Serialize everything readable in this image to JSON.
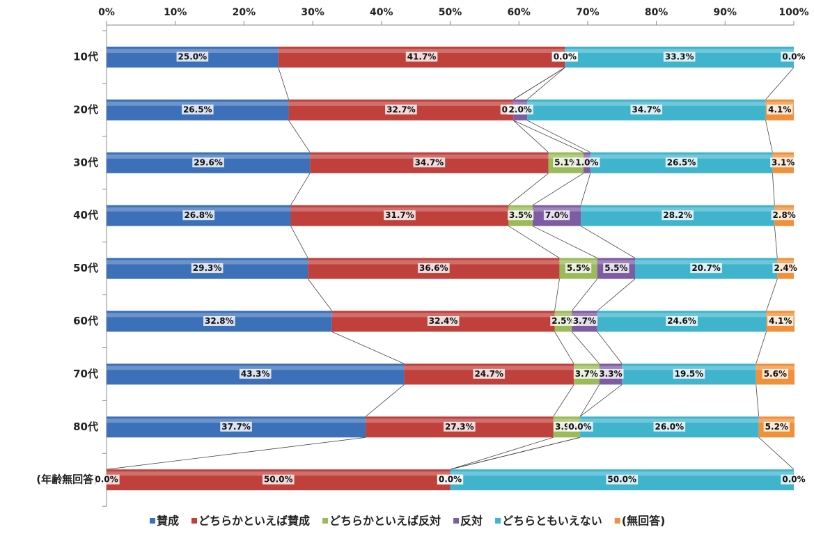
{
  "chart_data": {
    "type": "stacked-bar-horizontal",
    "categories": [
      "10代",
      "20代",
      "30代",
      "40代",
      "50代",
      "60代",
      "70代",
      "80代",
      "(年齢無回答)"
    ],
    "series": [
      {
        "name": "賛成",
        "color": "#3c70b8",
        "values": [
          25.0,
          26.5,
          29.6,
          26.8,
          29.3,
          32.8,
          43.3,
          37.7,
          0.0
        ],
        "value_labels": [
          "25.0%",
          "26.5%",
          "29.6%",
          "26.8%",
          "29.3%",
          "32.8%",
          "43.3%",
          "37.7%",
          "0.0%"
        ]
      },
      {
        "name": "どちらかといえば賛成",
        "color": "#c0403c",
        "values": [
          41.7,
          32.7,
          34.7,
          31.7,
          36.6,
          32.4,
          24.7,
          27.3,
          50.0
        ],
        "value_labels": [
          "41.7%",
          "32.7%",
          "34.7%",
          "31.7%",
          "36.6%",
          "32.4%",
          "24.7%",
          "27.3%",
          "50.0%"
        ]
      },
      {
        "name": "どちらかといえば反対",
        "color": "#9bbb59",
        "values": [
          0.0,
          0.0,
          5.1,
          3.5,
          5.5,
          2.5,
          3.7,
          3.9,
          0.0
        ],
        "value_labels": [
          "0.0%",
          "0.0%",
          "5.1%",
          "3.5%",
          "5.5%",
          "2.5%",
          "3.7%",
          "3.9%",
          "0.0%"
        ]
      },
      {
        "name": "反対",
        "color": "#7e5ca3",
        "values": [
          0.0,
          2.0,
          1.0,
          7.0,
          5.5,
          3.7,
          3.3,
          0.0,
          0.0
        ],
        "value_labels": [
          "0.0%",
          "2.0%",
          "1.0%",
          "7.0%",
          "5.5%",
          "3.7%",
          "3.3%",
          "0.0%",
          "0.0%"
        ]
      },
      {
        "name": "どちらともいえない",
        "color": "#3fb4cc",
        "values": [
          33.3,
          34.7,
          26.5,
          28.2,
          20.7,
          24.6,
          19.5,
          26.0,
          50.0
        ],
        "value_labels": [
          "33.3%",
          "34.7%",
          "26.5%",
          "28.2%",
          "20.7%",
          "24.6%",
          "19.5%",
          "26.0%",
          "50.0%"
        ]
      },
      {
        "name": "(無回答)",
        "color": "#f0913a",
        "values": [
          0.0,
          4.1,
          3.1,
          2.8,
          2.4,
          4.1,
          5.6,
          5.2,
          0.0
        ],
        "value_labels": [
          "0.0%",
          "4.1%",
          "3.1%",
          "2.8%",
          "2.4%",
          "4.1%",
          "5.6%",
          "5.2%",
          "0.0%"
        ]
      }
    ],
    "xlim": [
      0,
      100
    ],
    "xticks": [
      {
        "value": 0,
        "label": "0%"
      },
      {
        "value": 10,
        "label": "10%"
      },
      {
        "value": 20,
        "label": "20%"
      },
      {
        "value": 30,
        "label": "30%"
      },
      {
        "value": 40,
        "label": "40%"
      },
      {
        "value": 50,
        "label": "50%"
      },
      {
        "value": 60,
        "label": "60%"
      },
      {
        "value": 70,
        "label": "70%"
      },
      {
        "value": 80,
        "label": "80%"
      },
      {
        "value": 90,
        "label": "90%"
      },
      {
        "value": 100,
        "label": "100%"
      }
    ],
    "legend": "bottom"
  }
}
